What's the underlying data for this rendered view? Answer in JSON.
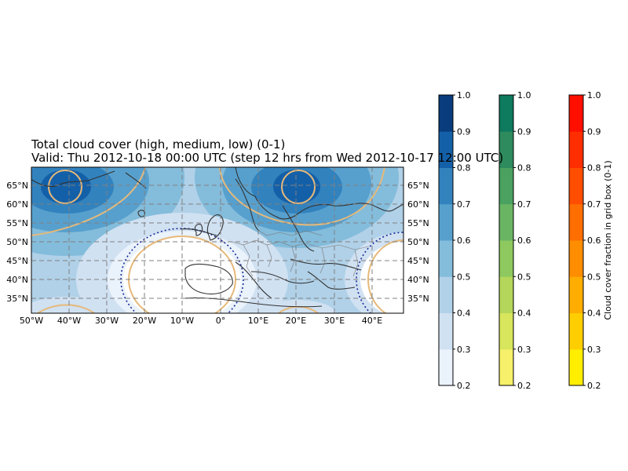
{
  "title": {
    "line1": "Total cloud cover (high, medium, low) (0-1)",
    "line2": "Valid: Thu 2012-10-18 00:00 UTC (step 12 hrs from Wed 2012-10-17 12:00 UTC)"
  },
  "map": {
    "lon_labels": [
      "50°W",
      "40°W",
      "30°W",
      "20°W",
      "10°W",
      "0°",
      "10°E",
      "20°E",
      "30°E",
      "40°E"
    ],
    "lat_labels": [
      "65°N",
      "60°N",
      "55°N",
      "50°N",
      "45°N",
      "40°N",
      "35°N"
    ],
    "extent_lon": [
      -50,
      48
    ],
    "extent_lat": [
      31,
      70
    ],
    "contour_color": "#e6b97a",
    "low_contour_color": "#1a2a9a"
  },
  "colorbars": [
    {
      "name": "blues",
      "ticks": [
        "0.2",
        "0.3",
        "0.4",
        "0.5",
        "0.6",
        "0.7",
        "0.8",
        "0.9",
        "1.0"
      ],
      "colors": [
        "#eaf2fb",
        "#d0e1f2",
        "#b0d1e8",
        "#84bcdb",
        "#57a0ce",
        "#3282be",
        "#1460a8",
        "#083c7d"
      ]
    },
    {
      "name": "greens",
      "ticks": [
        "0.2",
        "0.3",
        "0.4",
        "0.5",
        "0.6",
        "0.7",
        "0.8",
        "0.9",
        "1.0"
      ],
      "colors": [
        "#f6f06a",
        "#d7e65c",
        "#b4d65a",
        "#8dc95e",
        "#69b564",
        "#4aa160",
        "#2e8b5e",
        "#0e7a5e"
      ]
    },
    {
      "name": "reds",
      "ticks": [
        "0.2",
        "0.3",
        "0.4",
        "0.5",
        "0.6",
        "0.7",
        "0.8",
        "0.9",
        "1.0"
      ],
      "colors": [
        "#ffee00",
        "#ffce00",
        "#ffad00",
        "#ff8d00",
        "#ff6e00",
        "#ff4e00",
        "#ff2e00",
        "#ff0f00"
      ],
      "label": "Cloud cover fraction in grid box (0-1)"
    }
  ]
}
